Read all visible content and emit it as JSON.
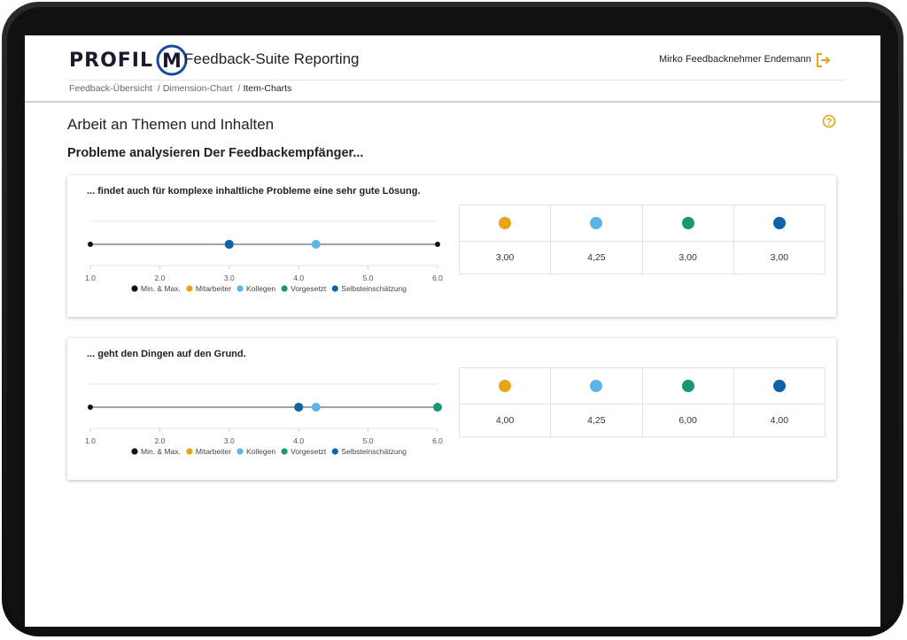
{
  "header": {
    "logo_text": "PROFIL",
    "logo_letter": "M",
    "app_title": "Feedback-Suite Reporting",
    "user_name": "Mirko Feedbacknehmer Endemann",
    "logout_icon": "logout-icon"
  },
  "breadcrumb": {
    "items": [
      "Feedback-Übersicht",
      "Dimension-Chart",
      "Item-Charts"
    ],
    "separator": "/"
  },
  "page": {
    "title": "Arbeit an Themen und Inhalten",
    "help_icon": "help-circle-icon",
    "section_title": "Probleme analysieren Der Feedbackempfänger..."
  },
  "colors": {
    "minmax": "#111111",
    "mitarbeiter": "#E8A317",
    "kollegen": "#5DB4E6",
    "vorgesetzt": "#16977A",
    "selbst": "#0F63A8",
    "accent": "#E8A317"
  },
  "legend": [
    "Min. & Max.",
    "Mitarbeiter",
    "Kollegen",
    "Vorgesetzt",
    "Selbsteinschätzung"
  ],
  "items": [
    {
      "question": "... findet auch für komplexe inhaltliche Probleme eine sehr gute Lösung.",
      "values": [
        "3,00",
        "4,25",
        "3,00",
        "3,00"
      ]
    },
    {
      "question": "... geht den Dingen auf den Grund.",
      "values": [
        "4,00",
        "4,25",
        "6,00",
        "4,00"
      ]
    }
  ],
  "chart_data": [
    {
      "type": "scatter",
      "xlim": [
        1.0,
        6.0
      ],
      "x_ticks": [
        "1.0",
        "2.0",
        "3.0",
        "4.0",
        "5.0",
        "6.0"
      ],
      "legend_position": "bottom",
      "series": [
        {
          "name": "Min. & Max.",
          "x": [
            1.0,
            6.0
          ]
        },
        {
          "name": "Mitarbeiter",
          "x": [
            3.0
          ]
        },
        {
          "name": "Kollegen",
          "x": [
            4.25
          ]
        },
        {
          "name": "Vorgesetzt",
          "x": [
            3.0
          ]
        },
        {
          "name": "Selbsteinschätzung",
          "x": [
            3.0
          ]
        }
      ]
    },
    {
      "type": "scatter",
      "xlim": [
        1.0,
        6.0
      ],
      "x_ticks": [
        "1.0",
        "2.0",
        "3.0",
        "4.0",
        "5.0",
        "6.0"
      ],
      "legend_position": "bottom",
      "series": [
        {
          "name": "Min. & Max.",
          "x": [
            1.0,
            6.0
          ]
        },
        {
          "name": "Mitarbeiter",
          "x": [
            4.0
          ]
        },
        {
          "name": "Kollegen",
          "x": [
            4.25
          ]
        },
        {
          "name": "Vorgesetzt",
          "x": [
            6.0
          ]
        },
        {
          "name": "Selbsteinschätzung",
          "x": [
            4.0
          ]
        }
      ]
    }
  ]
}
